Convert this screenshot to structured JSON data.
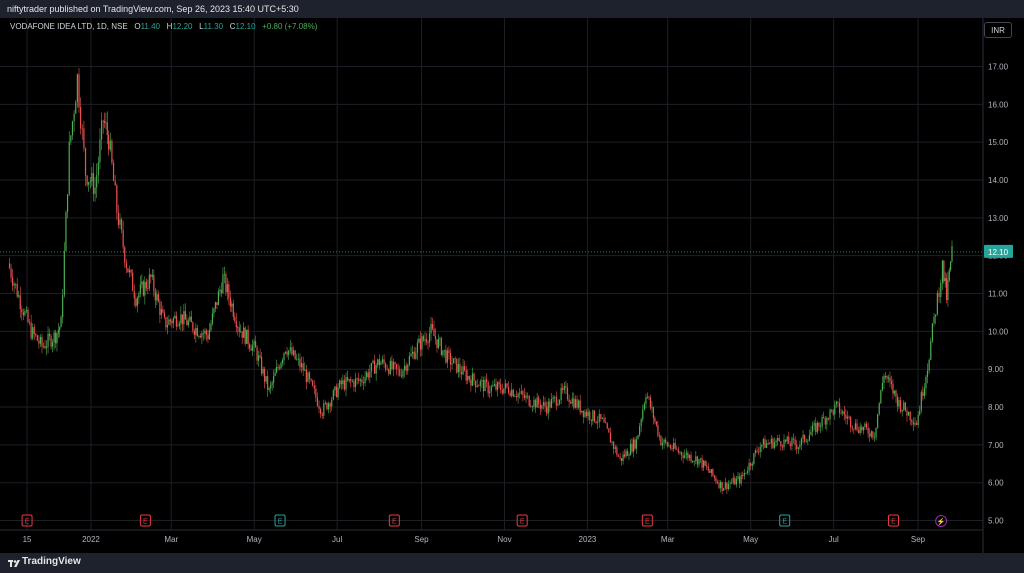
{
  "header": {
    "published_text": "niftytrader published on TradingView.com, Sep 26, 2023 15:40 UTC+5:30"
  },
  "legend": {
    "title": "VODAFONE IDEA LTD, 1D, NSE",
    "open_label": "O",
    "open": "11.40",
    "high_label": "H",
    "high": "12.20",
    "low_label": "L",
    "low": "11.30",
    "close_label": "C",
    "close": "12.10",
    "change": "+0.80 (+7.08%)"
  },
  "currency": "INR",
  "footer": {
    "brand": "TradingView"
  },
  "colors": {
    "up": "#4caf50",
    "down": "#ef5350",
    "price_label": "#26a69a"
  },
  "chart_data": {
    "type": "candlestick",
    "ylim": [
      4.75,
      17.7
    ],
    "y_ticks": [
      "5.00",
      "6.00",
      "7.00",
      "8.00",
      "9.00",
      "10.00",
      "11.00",
      "12.00",
      "13.00",
      "14.00",
      "15.00",
      "16.00",
      "17.00"
    ],
    "x_ticks": [
      "15",
      "2022",
      "Mar",
      "May",
      "Jul",
      "Sep",
      "Nov",
      "2023",
      "Mar",
      "May",
      "Jul",
      "Sep"
    ],
    "last_price": "12.10",
    "grid": true,
    "earnings_markers": [
      "E",
      "E",
      "E",
      "E",
      "E",
      "E",
      "E",
      "E"
    ],
    "dividend_marker": "⚡",
    "series": [
      {
        "x": "2021-11-01",
        "close": 11.8
      },
      {
        "x": "2021-11-10",
        "close": 10.8
      },
      {
        "x": "2021-11-18",
        "close": 10.0
      },
      {
        "x": "2021-11-26",
        "close": 9.6
      },
      {
        "x": "2021-12-06",
        "close": 9.9
      },
      {
        "x": "2021-12-10",
        "close": 10.2
      },
      {
        "x": "2021-12-16",
        "close": 14.8
      },
      {
        "x": "2021-12-22",
        "close": 16.7
      },
      {
        "x": "2021-12-28",
        "close": 14.2
      },
      {
        "x": "2022-01-04",
        "close": 13.8
      },
      {
        "x": "2022-01-10",
        "close": 15.6
      },
      {
        "x": "2022-01-14",
        "close": 15.1
      },
      {
        "x": "2022-01-20",
        "close": 13.2
      },
      {
        "x": "2022-01-27",
        "close": 11.8
      },
      {
        "x": "2022-02-03",
        "close": 10.9
      },
      {
        "x": "2022-02-14",
        "close": 11.4
      },
      {
        "x": "2022-02-24",
        "close": 10.2
      },
      {
        "x": "2022-03-07",
        "close": 10.4
      },
      {
        "x": "2022-03-18",
        "close": 10.1
      },
      {
        "x": "2022-03-28",
        "close": 9.9
      },
      {
        "x": "2022-04-08",
        "close": 11.4
      },
      {
        "x": "2022-04-20",
        "close": 10.1
      },
      {
        "x": "2022-05-02",
        "close": 9.5
      },
      {
        "x": "2022-05-12",
        "close": 8.4
      },
      {
        "x": "2022-05-24",
        "close": 9.6
      },
      {
        "x": "2022-06-06",
        "close": 9.0
      },
      {
        "x": "2022-06-20",
        "close": 7.9
      },
      {
        "x": "2022-07-04",
        "close": 8.6
      },
      {
        "x": "2022-07-18",
        "close": 8.7
      },
      {
        "x": "2022-08-01",
        "close": 9.2
      },
      {
        "x": "2022-08-16",
        "close": 8.9
      },
      {
        "x": "2022-08-29",
        "close": 9.6
      },
      {
        "x": "2022-09-08",
        "close": 10.0
      },
      {
        "x": "2022-09-20",
        "close": 9.3
      },
      {
        "x": "2022-10-05",
        "close": 8.8
      },
      {
        "x": "2022-10-20",
        "close": 8.5
      },
      {
        "x": "2022-11-04",
        "close": 8.5
      },
      {
        "x": "2022-11-18",
        "close": 8.2
      },
      {
        "x": "2022-12-02",
        "close": 8.0
      },
      {
        "x": "2022-12-15",
        "close": 8.4
      },
      {
        "x": "2022-12-29",
        "close": 7.9
      },
      {
        "x": "2023-01-12",
        "close": 7.6
      },
      {
        "x": "2023-01-25",
        "close": 6.6
      },
      {
        "x": "2023-02-06",
        "close": 7.1
      },
      {
        "x": "2023-02-13",
        "close": 8.4
      },
      {
        "x": "2023-02-24",
        "close": 7.1
      },
      {
        "x": "2023-03-10",
        "close": 6.8
      },
      {
        "x": "2023-03-24",
        "close": 6.6
      },
      {
        "x": "2023-04-10",
        "close": 5.9
      },
      {
        "x": "2023-04-24",
        "close": 6.1
      },
      {
        "x": "2023-05-08",
        "close": 7.0
      },
      {
        "x": "2023-05-22",
        "close": 7.1
      },
      {
        "x": "2023-06-05",
        "close": 7.0
      },
      {
        "x": "2023-06-19",
        "close": 7.5
      },
      {
        "x": "2023-07-03",
        "close": 8.0
      },
      {
        "x": "2023-07-17",
        "close": 7.5
      },
      {
        "x": "2023-07-31",
        "close": 7.3
      },
      {
        "x": "2023-08-07",
        "close": 8.9
      },
      {
        "x": "2023-08-18",
        "close": 8.1
      },
      {
        "x": "2023-08-31",
        "close": 7.6
      },
      {
        "x": "2023-09-08",
        "close": 9.1
      },
      {
        "x": "2023-09-14",
        "close": 10.6
      },
      {
        "x": "2023-09-19",
        "close": 11.7
      },
      {
        "x": "2023-09-22",
        "close": 10.9
      },
      {
        "x": "2023-09-26",
        "close": 12.1
      }
    ]
  }
}
